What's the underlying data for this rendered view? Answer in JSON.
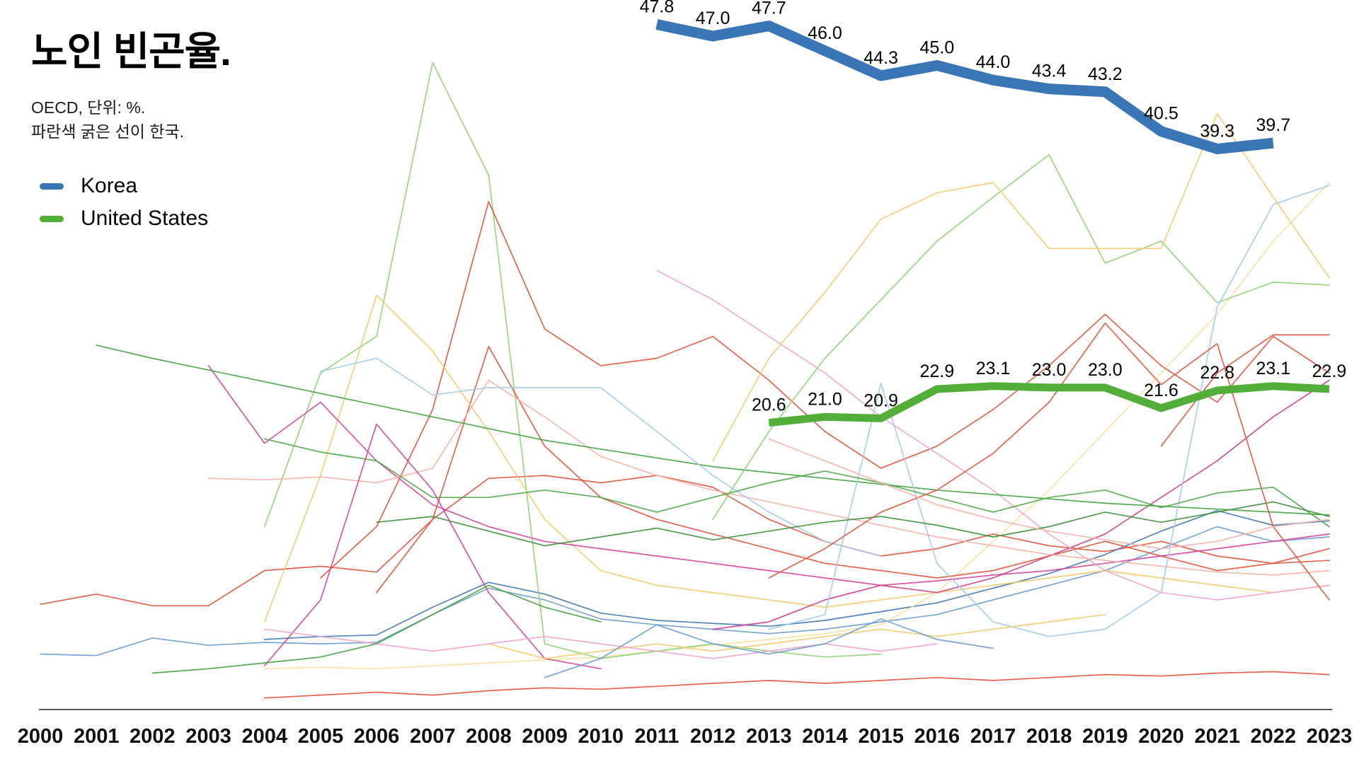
{
  "title": "노인 빈곤율.",
  "subtitle1": "OECD, 단위: %.",
  "subtitle2": "파란색 굵은 선이 한국.",
  "legend": [
    {
      "label": "Korea",
      "color": "#3a76b5"
    },
    {
      "label": "United States",
      "color": "#52ae38"
    }
  ],
  "chart_data": {
    "type": "line",
    "title": "노인 빈곤율.",
    "subtitle": "OECD, 단위: %. 파란색 굵은 선이 한국.",
    "xlabel": "",
    "ylabel": "",
    "grid": false,
    "legend_position": "top-left",
    "x_ticks": [
      2000,
      2001,
      2002,
      2003,
      2004,
      2005,
      2006,
      2007,
      2008,
      2009,
      2010,
      2011,
      2012,
      2013,
      2014,
      2015,
      2016,
      2017,
      2018,
      2019,
      2020,
      2021,
      2022,
      2023
    ],
    "y_axis": {
      "visible": false,
      "implied_range": [
        0,
        50
      ]
    },
    "series": [
      {
        "name": "Korea",
        "color": "#3a76b5",
        "line_width": 15,
        "start_year": 2011,
        "values": [
          47.8,
          47.0,
          47.7,
          46.0,
          44.3,
          45.0,
          44.0,
          43.4,
          43.2,
          40.5,
          39.3,
          39.7
        ],
        "labels": [
          "47.8",
          "47.0",
          "47.7",
          "46.0",
          "44.3",
          "45.0",
          "44.0",
          "43.4",
          "43.2",
          "40.5",
          "39.3",
          "39.7"
        ]
      },
      {
        "name": "United States",
        "color": "#52ae38",
        "line_width": 11,
        "start_year": 2013,
        "values": [
          20.6,
          21.0,
          20.9,
          22.9,
          23.1,
          23.0,
          23.0,
          21.6,
          22.8,
          23.1,
          22.9
        ],
        "labels": [
          "20.6",
          "21.0",
          "20.9",
          "22.9",
          "23.1",
          "23.0",
          "23.0",
          "21.6",
          "22.8",
          "23.1",
          "22.9"
        ]
      }
    ],
    "background_series": [
      {
        "name": "other",
        "color": "#e2533d",
        "start_year": 2000,
        "values": [
          8.2,
          8.9,
          8.1,
          8.1,
          10.5,
          10.8,
          10.4,
          14,
          16.8,
          17,
          16.5,
          17,
          16.2,
          14,
          12.5,
          11.5,
          12,
          13,
          12.2,
          11.8,
          12.5,
          11.5,
          11,
          11.2
        ]
      },
      {
        "name": "other",
        "color": "#6b9bd1",
        "start_year": 2000,
        "values": [
          4.8,
          4.7,
          5.9,
          5.4,
          5.6,
          5.5,
          5.6,
          7.5,
          9.3,
          8.5,
          7.2,
          6.8,
          6.5,
          6.2,
          6.5,
          7,
          7.5,
          8.5,
          9.5,
          10.5,
          12,
          13.5,
          12.5,
          12.8
        ]
      },
      {
        "name": "other",
        "color": "#4178b4",
        "start_year": 2004,
        "values": [
          5.8,
          6.0,
          6.1,
          8.0,
          9.7,
          8.9,
          7.6,
          7.1,
          6.9,
          6.7,
          7.1,
          7.7,
          8.3,
          9.3,
          10.3,
          11.6,
          13.2,
          14.6,
          13.6,
          13.9
        ]
      },
      {
        "name": "other",
        "color": "#e2533d",
        "start_year": 2004,
        "values": [
          1.8,
          2.0,
          2.2,
          2.0,
          2.3,
          2.5,
          2.4,
          2.6,
          2.8,
          3.0,
          2.8,
          3.0,
          3.2,
          3.0,
          3.2,
          3.4,
          3.3,
          3.5,
          3.6,
          3.4
        ]
      },
      {
        "name": "other",
        "color": "#f7e09e",
        "start_year": 2004,
        "values": [
          3.8,
          3.9,
          3.8,
          4.0,
          4.2,
          4.4,
          4.6,
          5.0,
          5.4,
          5.8,
          6.2,
          6.8,
          9.0,
          12.5,
          16.0,
          20.0,
          24.0,
          28.0,
          33.0,
          37.0
        ]
      },
      {
        "name": "other",
        "color": "#8fd374",
        "start_year": 2004,
        "values": [
          13.5,
          24.0,
          26.5,
          45.2,
          37.5,
          5.5,
          4.5,
          5.0,
          5.5,
          5.0,
          4.6,
          4.8
        ]
      },
      {
        "name": "other",
        "color": "#e2533d",
        "start_year": 2005,
        "values": [
          10,
          13.5,
          21.5,
          35.7,
          27,
          24.5,
          25,
          26.5,
          23.5,
          20,
          17.5,
          19,
          21.5,
          24.5,
          28,
          24.5,
          22,
          26.5,
          24
        ]
      },
      {
        "name": "other",
        "color": "#e2533d",
        "start_year": 2006,
        "values": [
          9,
          14,
          25.8,
          19,
          15.5,
          14,
          13,
          12,
          11,
          10.5,
          10,
          10.5,
          11.5,
          12.5,
          11.5,
          10.5,
          11,
          12
        ]
      },
      {
        "name": "other",
        "color": "#f2cc6d",
        "start_year": 2004,
        "values": [
          7,
          17,
          29.3,
          25.5,
          20,
          14,
          10.5,
          9.5,
          9,
          8.5,
          8,
          8.5,
          9,
          9.5,
          10,
          10.5,
          10,
          9.5,
          9,
          9.5
        ]
      },
      {
        "name": "other",
        "color": "#d6429b",
        "start_year": 2003,
        "values": [
          24.5,
          19.2,
          22,
          18,
          15,
          13.5,
          12.5,
          12,
          11.5,
          11,
          10.5,
          10,
          9.5,
          9.8,
          10.2,
          10.5,
          11,
          11.5,
          12,
          12.5,
          13
        ]
      },
      {
        "name": "other",
        "color": "#cc3f8e",
        "start_year": 2012,
        "values": [
          6.5,
          7,
          8.5,
          9.5,
          9,
          10,
          11.5,
          13,
          15.5,
          18,
          21,
          23.5
        ]
      },
      {
        "name": "other",
        "color": "#efa5cd",
        "start_year": 2011,
        "values": [
          31,
          29,
          26.5,
          24,
          21,
          18.5,
          16,
          13,
          10.5,
          9,
          8.5,
          9,
          9.5
        ]
      },
      {
        "name": "other",
        "color": "#f5b3a8",
        "start_year": 2003,
        "values": [
          16.8,
          16.7,
          16.9,
          16.5,
          17.5,
          23.5,
          21,
          18.3,
          17,
          16,
          15.2,
          14.4,
          13.6,
          12.8,
          12.2,
          11.6,
          11.2,
          10.8,
          10.4,
          10.2,
          10.5
        ]
      },
      {
        "name": "other",
        "color": "#44a13f",
        "start_year": 2001,
        "values": [
          25.9,
          25.0,
          24.2,
          23.4,
          22.6,
          21.8,
          21.0,
          20.2,
          19.4,
          18.8,
          18.2,
          17.6,
          17.2,
          16.8,
          16.4,
          16.0,
          15.7,
          15.4,
          15.1,
          14.9,
          14.7,
          14.5,
          14.3
        ]
      },
      {
        "name": "other",
        "color": "#8fd374",
        "start_year": 2012,
        "values": [
          14,
          20,
          25,
          29,
          33,
          36,
          38.9,
          31.5,
          33,
          28.8,
          30.2,
          30
        ]
      },
      {
        "name": "other",
        "color": "#f2cc6d",
        "start_year": 2012,
        "values": [
          18,
          25,
          29.5,
          34.5,
          36.3,
          37,
          32.5,
          32.5,
          32.5,
          41.7,
          36,
          30.5
        ]
      },
      {
        "name": "other",
        "color": "#a3cbe8",
        "start_year": 2005,
        "values": [
          24.1,
          25,
          22.5,
          23,
          23,
          23,
          20,
          17,
          14.5,
          12.5,
          11.5
        ]
      },
      {
        "name": "other",
        "color": "#a3cbe8",
        "start_year": 2013,
        "values": [
          6.5,
          7.5,
          23.3,
          11,
          7,
          6,
          6.5,
          9,
          28.5,
          35.5,
          36.8
        ]
      },
      {
        "name": "other",
        "color": "#4fa747",
        "start_year": 2004,
        "values": [
          19.5,
          18.6,
          18,
          15.5,
          15.5,
          16,
          15.5,
          14.5,
          15.5,
          16.5,
          17.3,
          16.5,
          15.5,
          14.5,
          15.5,
          16,
          14.8,
          15.8,
          16.2,
          13.5
        ]
      },
      {
        "name": "other",
        "color": "#3d8f3d",
        "start_year": 2006,
        "values": [
          13.8,
          14.2,
          13.2,
          12.2,
          12.8,
          13.4,
          12.6,
          13.2,
          13.8,
          14.2,
          13.6,
          12.8,
          13.5,
          14.5,
          13.8,
          14.5,
          15.2,
          14.2
        ]
      },
      {
        "name": "other",
        "color": "#d6429b",
        "start_year": 2004,
        "values": [
          4,
          8.5,
          20.5,
          16,
          9,
          4.5,
          3.8
        ]
      },
      {
        "name": "other",
        "color": "#e2533d",
        "start_year": 2013,
        "values": [
          10,
          12,
          14.5,
          16,
          18.5,
          22,
          27.4,
          23.2,
          26,
          13.5,
          8.5
        ]
      },
      {
        "name": "other",
        "color": "#e2533d",
        "start_year": 2020,
        "values": [
          19,
          24,
          26.6,
          26.6
        ]
      },
      {
        "name": "other",
        "color": "#f2cc6d",
        "start_year": 2008,
        "values": [
          5.5,
          4.5,
          5,
          5.5,
          5,
          5.5,
          6,
          6.5,
          6,
          6.5,
          7,
          7.5
        ]
      },
      {
        "name": "other",
        "color": "#efa5cd",
        "start_year": 2004,
        "values": [
          6.5,
          6,
          5.5,
          5,
          5.5,
          6,
          5.5,
          5,
          4.5,
          5,
          5.5,
          5,
          5.5
        ]
      },
      {
        "name": "other",
        "color": "#44a13f",
        "start_year": 2002,
        "values": [
          3.5,
          3.8,
          4.2,
          4.6,
          5.5,
          7.5,
          9.5,
          8,
          7
        ]
      },
      {
        "name": "other",
        "color": "#6b9bd1",
        "start_year": 2009,
        "values": [
          3.2,
          4.5,
          6.8,
          5.5,
          4.8,
          5.5,
          7.2,
          5.8,
          5.2
        ]
      },
      {
        "name": "other",
        "color": "#f5b3a8",
        "start_year": 2013,
        "values": [
          19.5,
          18,
          16.5,
          15,
          14,
          13.2,
          12.6,
          12,
          12.5,
          13.5,
          14
        ]
      }
    ]
  }
}
